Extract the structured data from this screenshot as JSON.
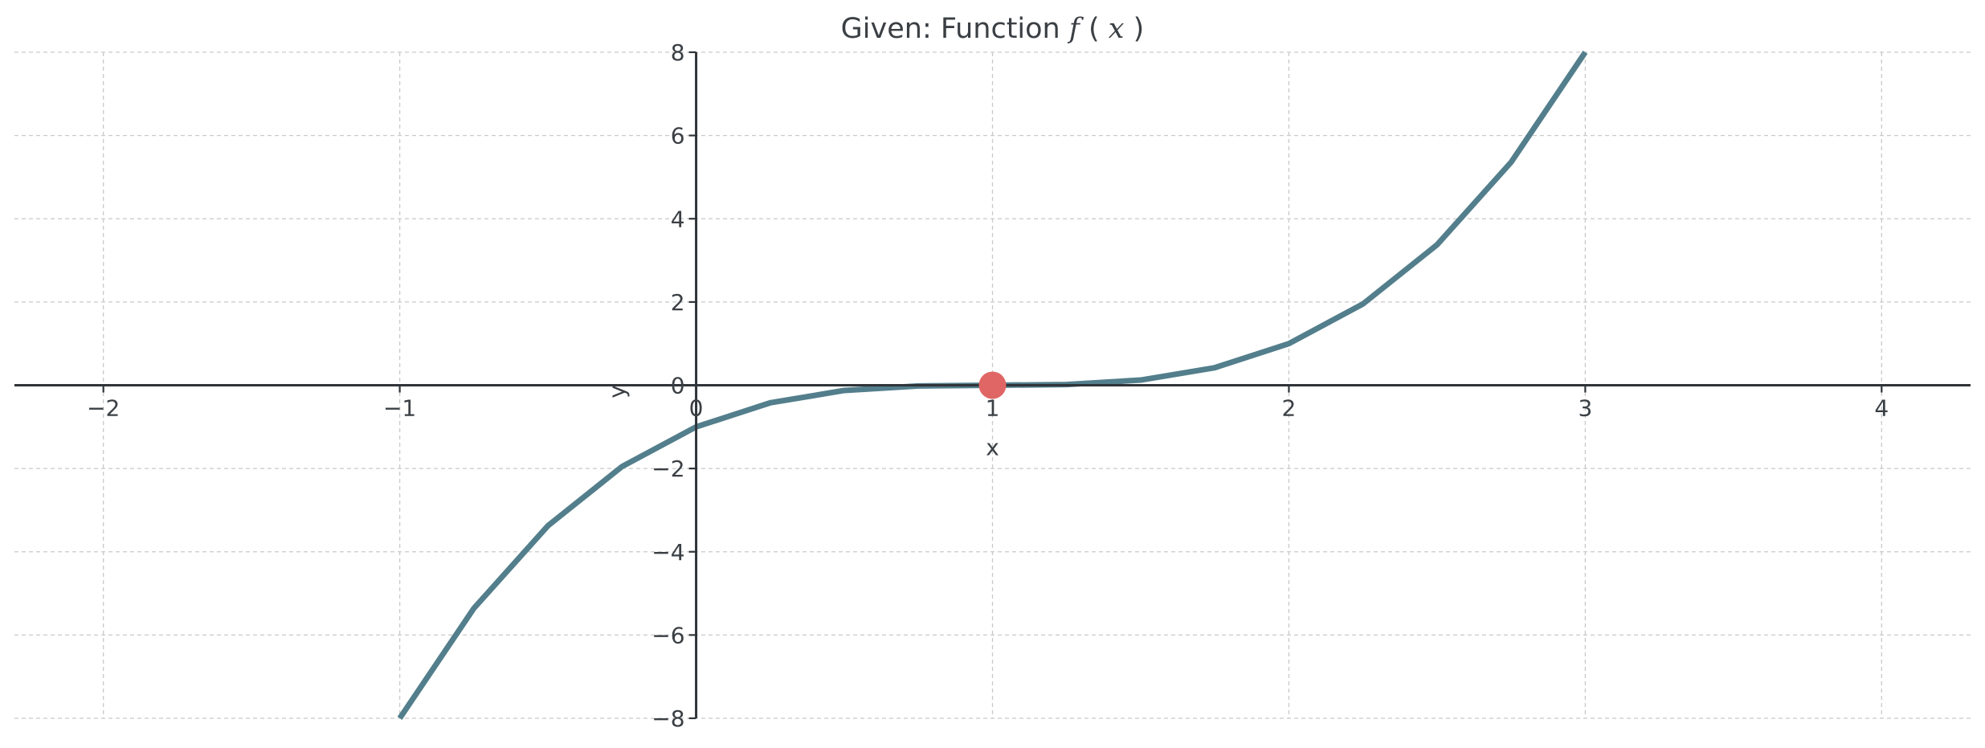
{
  "title_prefix": "Given: Function ",
  "title_function": "f",
  "title_open_paren": "(",
  "title_variable": "x",
  "title_close_paren": ")",
  "chart_data": {
    "type": "line",
    "title": "Given: Function f(x)",
    "xlabel": "x",
    "ylabel": "y",
    "xlim": [
      -2.3,
      4.3
    ],
    "ylim": [
      -8,
      8
    ],
    "grid": true,
    "legend": "none",
    "series_style": {
      "color": "#537e8c"
    },
    "x": [
      -1.0,
      -0.75,
      -0.5,
      -0.25,
      0.0,
      0.25,
      0.5,
      0.75,
      1.0,
      1.25,
      1.5,
      1.75,
      2.0,
      2.25,
      2.5,
      2.75,
      3.0
    ],
    "series": [
      {
        "values": [
          -8.0,
          -5.359,
          -3.375,
          -1.953,
          -1.0,
          -0.422,
          -0.125,
          -0.016,
          0.0,
          0.016,
          0.125,
          0.422,
          1.0,
          1.953,
          3.375,
          5.359,
          8.0
        ]
      }
    ],
    "points": [
      {
        "x": 1,
        "y": 0,
        "color": "#e06666"
      }
    ],
    "x_ticks": [
      {
        "value": -2,
        "label": "−2"
      },
      {
        "value": -1,
        "label": "−1"
      },
      {
        "value": 0,
        "label": "0"
      },
      {
        "value": 1,
        "label": "1"
      },
      {
        "value": 2,
        "label": "2"
      },
      {
        "value": 3,
        "label": "3"
      },
      {
        "value": 4,
        "label": "4"
      }
    ],
    "y_ticks": [
      {
        "value": -8,
        "label": "−8"
      },
      {
        "value": -6,
        "label": "−6"
      },
      {
        "value": -4,
        "label": "−4"
      },
      {
        "value": -2,
        "label": "−2"
      },
      {
        "value": 0,
        "label": "0"
      },
      {
        "value": 2,
        "label": "2"
      },
      {
        "value": 4,
        "label": "4"
      },
      {
        "value": 6,
        "label": "6"
      },
      {
        "value": 8,
        "label": "8"
      }
    ]
  }
}
